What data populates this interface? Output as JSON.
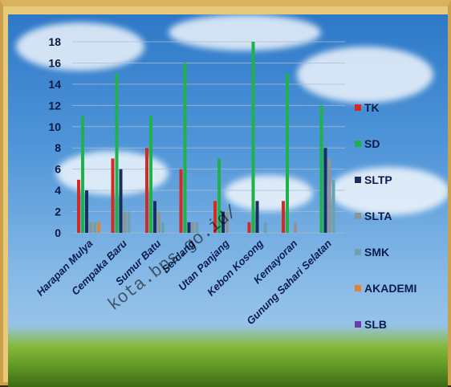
{
  "caption": "",
  "watermark": "kota.bps.go.id/",
  "colors": {
    "TK": "#d42a24",
    "SD": "#1fb24a",
    "SLTP": "#17305e",
    "SLTA": "#8f9499",
    "SMK": "#6fa0ad",
    "AKADEMI": "#e0823a",
    "SLB": "#6a3ea8"
  },
  "chart_data": {
    "type": "bar",
    "title": "",
    "xlabel": "",
    "ylabel": "",
    "ylim": [
      0,
      18
    ],
    "yticks": [
      0,
      2,
      4,
      6,
      8,
      10,
      12,
      14,
      16,
      18
    ],
    "grid": true,
    "legend": "right",
    "categories": [
      "Harapan Mulya",
      "Cempaka Baru",
      "Sumur Batu",
      "Serdang",
      "Utan Panjang",
      "Kebon Kosong",
      "Kemayoran",
      "Gunung Sahari Selatan"
    ],
    "series": [
      {
        "name": "TK",
        "values": [
          5,
          7,
          8,
          6,
          3,
          1,
          3,
          0
        ]
      },
      {
        "name": "SD",
        "values": [
          11,
          15,
          11,
          16,
          7,
          18,
          15,
          12
        ]
      },
      {
        "name": "SLTP",
        "values": [
          4,
          6,
          3,
          1,
          2,
          3,
          0,
          8
        ]
      },
      {
        "name": "SLTA",
        "values": [
          1,
          2,
          2,
          1,
          2,
          0,
          1,
          7
        ]
      },
      {
        "name": "SMK",
        "values": [
          1,
          2,
          1,
          1,
          0,
          1,
          0,
          5
        ]
      },
      {
        "name": "AKADEMI",
        "values": [
          1,
          0,
          0,
          0,
          0,
          0,
          0,
          0
        ]
      },
      {
        "name": "SLB",
        "values": [
          0,
          0,
          0,
          0,
          0,
          0,
          0,
          0
        ]
      }
    ]
  }
}
